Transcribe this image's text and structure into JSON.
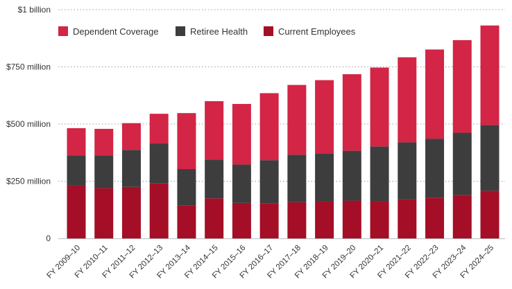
{
  "chart_data": {
    "type": "bar",
    "stacked": true,
    "categories": [
      "FY 2009–10",
      "FY 2010–11",
      "FY 2011–12",
      "FY 2012–13",
      "FY 2013–14",
      "FY 2014–15",
      "FY 2015–16",
      "FY 2016–17",
      "FY 2017–18",
      "FY 2018–19",
      "FY 2019–20",
      "FY 2020–21",
      "FY 2021–22",
      "FY 2022–23",
      "FY 2023–24",
      "FY 2024–25"
    ],
    "series": [
      {
        "name": "Current Employees",
        "color": "#a50e27",
        "values": [
          232,
          220,
          225,
          240,
          145,
          175,
          155,
          152,
          158,
          162,
          165,
          162,
          170,
          178,
          190,
          208
        ]
      },
      {
        "name": "Retiree Health",
        "color": "#3d3d3d",
        "values": [
          130,
          142,
          162,
          175,
          158,
          170,
          168,
          190,
          208,
          210,
          218,
          240,
          250,
          258,
          272,
          288
        ]
      },
      {
        "name": "Dependent Coverage",
        "color": "#d32546",
        "values": [
          120,
          117,
          117,
          130,
          245,
          255,
          265,
          293,
          305,
          320,
          335,
          345,
          372,
          390,
          405,
          435
        ]
      }
    ],
    "legend_order": [
      "Dependent Coverage",
      "Retiree Health",
      "Current Employees"
    ],
    "legend_position": "top-left",
    "ylim": [
      0,
      1000
    ],
    "yticks": [
      0,
      250,
      500,
      750,
      1000
    ],
    "ytick_labels": [
      "0",
      "$250 million",
      "$500 million",
      "$750 million",
      "$1 billion"
    ],
    "grid": "horizontal-dotted",
    "xlabel": "",
    "ylabel": "",
    "title": ""
  }
}
